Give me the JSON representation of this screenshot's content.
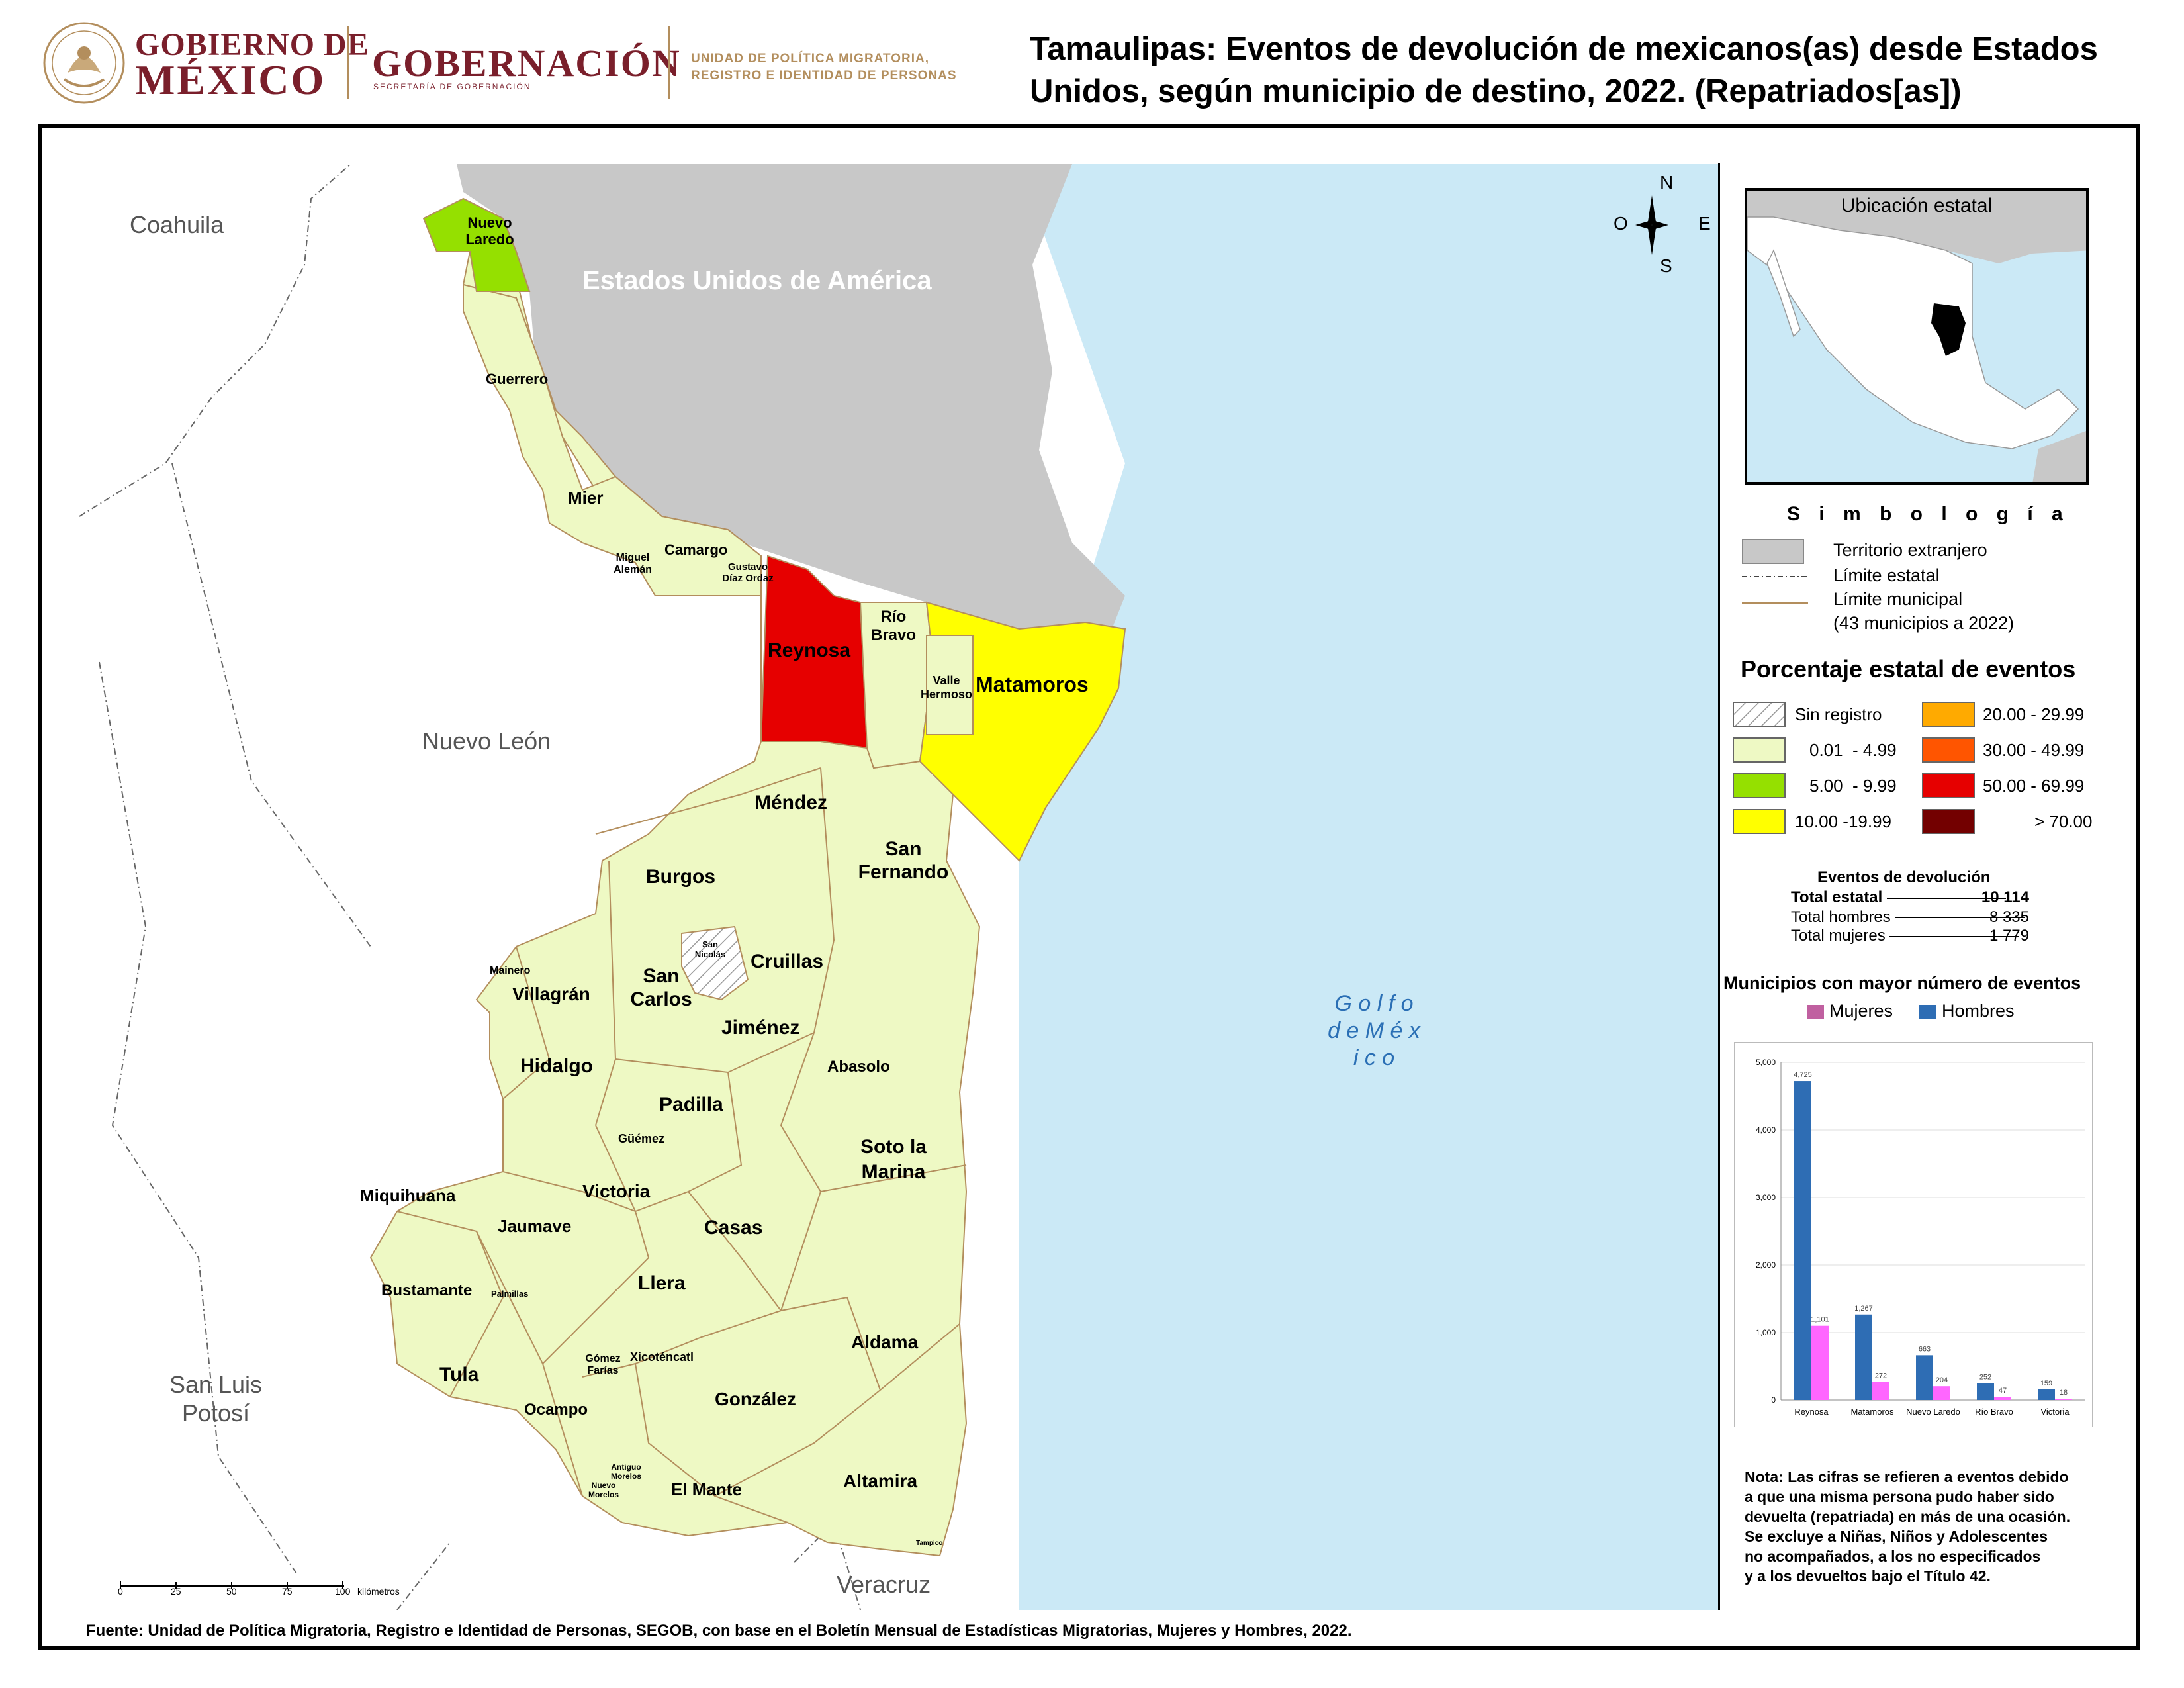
{
  "header": {
    "gob_line1": "GOBIERNO DE",
    "gob_line2": "MÉXICO",
    "gobernacion": "GOBERNACIÓN",
    "gobernacion_sub": "SECRETARÍA DE GOBERNACIÓN",
    "unidad_line1": "UNIDAD DE POLÍTICA MIGRATORIA,",
    "unidad_line2": "REGISTRO E IDENTIDAD DE PERSONAS",
    "title": "Tamaulipas: Eventos de devolución de mexicanos(as) desde Estados Unidos, según municipio de destino, 2022. (Repatriados[as])"
  },
  "map": {
    "regions": {
      "coahuila": "Coahuila",
      "nuevo_leon": "Nuevo León",
      "san_luis": "San Luis Potosí",
      "veracruz": "Veracruz",
      "usa": "Estados Unidos de América",
      "golfo": "G o l f o d e M é x i c o"
    },
    "compass": {
      "n": "N",
      "s": "S",
      "e": "E",
      "o": "O"
    },
    "scale": {
      "ticks": [
        "0",
        "25",
        "50",
        "75",
        "100"
      ],
      "unit": "kilómetros"
    },
    "municipios": {
      "nuevo_laredo": "Nuevo Laredo",
      "guerrero": "Guerrero",
      "mier": "Mier",
      "miguel_aleman": "Miguel Alemán",
      "camargo": "Camargo",
      "gustavo_diaz_ordaz": "Gustavo Díaz Ordaz",
      "reynosa": "Reynosa",
      "rio_bravo": "Río Bravo",
      "valle_hermoso": "Valle Hermoso",
      "matamoros": "Matamoros",
      "mendez": "Méndez",
      "san_fernando": "San Fernando",
      "burgos": "Burgos",
      "san_nicolas": "San Nicolás",
      "cruillas": "Cruillas",
      "mainero": "Mainero",
      "villagran": "Villagrán",
      "san_carlos": "San Carlos",
      "jimenez": "Jiménez",
      "hidalgo": "Hidalgo",
      "abasolo": "Abasolo",
      "padilla": "Padilla",
      "guemez": "Güémez",
      "soto_la_marina": "Soto la Marina",
      "victoria": "Victoria",
      "miquihuana": "Miquihuana",
      "jaumave": "Jaumave",
      "casas": "Casas",
      "bustamante": "Bustamante",
      "palmillas": "Palmillas",
      "llera": "Llera",
      "aldama": "Aldama",
      "tula": "Tula",
      "gomez_farias": "Gómez Farías",
      "xicotencatl": "Xicoténcatl",
      "ocampo": "Ocampo",
      "gonzalez": "González",
      "antiguo_morelos": "Antiguo Morelos",
      "nuevo_morelos": "Nuevo Morelos",
      "el_mante": "El Mante",
      "altamira": "Altamira",
      "tampico": "Tampico"
    }
  },
  "inset": {
    "title": "Ubicación estatal"
  },
  "legend": {
    "simbologia": "S i m b o l o g í a",
    "territorio": "Territorio extranjero",
    "limite_estatal": "Límite estatal",
    "limite_municipal": "Límite municipal",
    "municipios_count": "(43 municipios a 2022)",
    "pct_title": "Porcentaje estatal de eventos",
    "classes": [
      {
        "label": "Sin registro",
        "color": "hatch"
      },
      {
        "label": "0.01  - 4.99",
        "color": "#eef9c4"
      },
      {
        "label": "5.00  - 9.99",
        "color": "#95e000"
      },
      {
        "label": "10.00 -19.99",
        "color": "#ffff00"
      },
      {
        "label": "20.00 - 29.99",
        "color": "#ffaa00"
      },
      {
        "label": "30.00 - 49.99",
        "color": "#ff5500"
      },
      {
        "label": "50.00 - 69.99",
        "color": "#e60000"
      },
      {
        "label": "> 70.00",
        "color": "#730000"
      }
    ]
  },
  "eventos": {
    "title": "Eventos de devolución",
    "total_label": "Total estatal",
    "total_value": "10 114",
    "hombres_label": "Total hombres",
    "hombres_value": "8 335",
    "mujeres_label": "Total mujeres",
    "mujeres_value": "1 779"
  },
  "chart_title": "Municipios con mayor número de eventos",
  "chart_data": {
    "type": "bar",
    "categories": [
      "Reynosa",
      "Matamoros",
      "Nuevo Laredo",
      "Río Bravo",
      "Victoria"
    ],
    "series": [
      {
        "name": "Hombres",
        "color": "#2e6db4",
        "values": [
          4725,
          1267,
          663,
          252,
          159
        ],
        "labels": [
          "4,725",
          "1,267",
          "663",
          "252",
          "159"
        ]
      },
      {
        "name": "Mujeres",
        "color": "#ff66ff",
        "values": [
          1101,
          272,
          204,
          47,
          18
        ],
        "labels": [
          "1,101",
          "272",
          "204",
          "47",
          "18"
        ]
      }
    ],
    "legend_order": [
      "Mujeres",
      "Hombres"
    ],
    "yticks": [
      "0",
      "1,000",
      "2,000",
      "3,000",
      "4,000",
      "5,000"
    ],
    "ylim": [
      0,
      5000
    ]
  },
  "nota": [
    "Nota: Las cifras se refieren a eventos debido",
    "a que una misma persona pudo haber sido",
    "devuelta (repatriada) en más de una ocasión.",
    "Se excluye a Niñas, Niños y Adolescentes",
    "no acompañados, a los no especificados",
    "y a los devueltos bajo el Título 42."
  ],
  "source": "Fuente: Unidad de Política Migratoria, Registro e Identidad de Personas, SEGOB, con base en el Boletín Mensual de Estadísticas Migratorias, Mujeres y Hombres, 2022."
}
